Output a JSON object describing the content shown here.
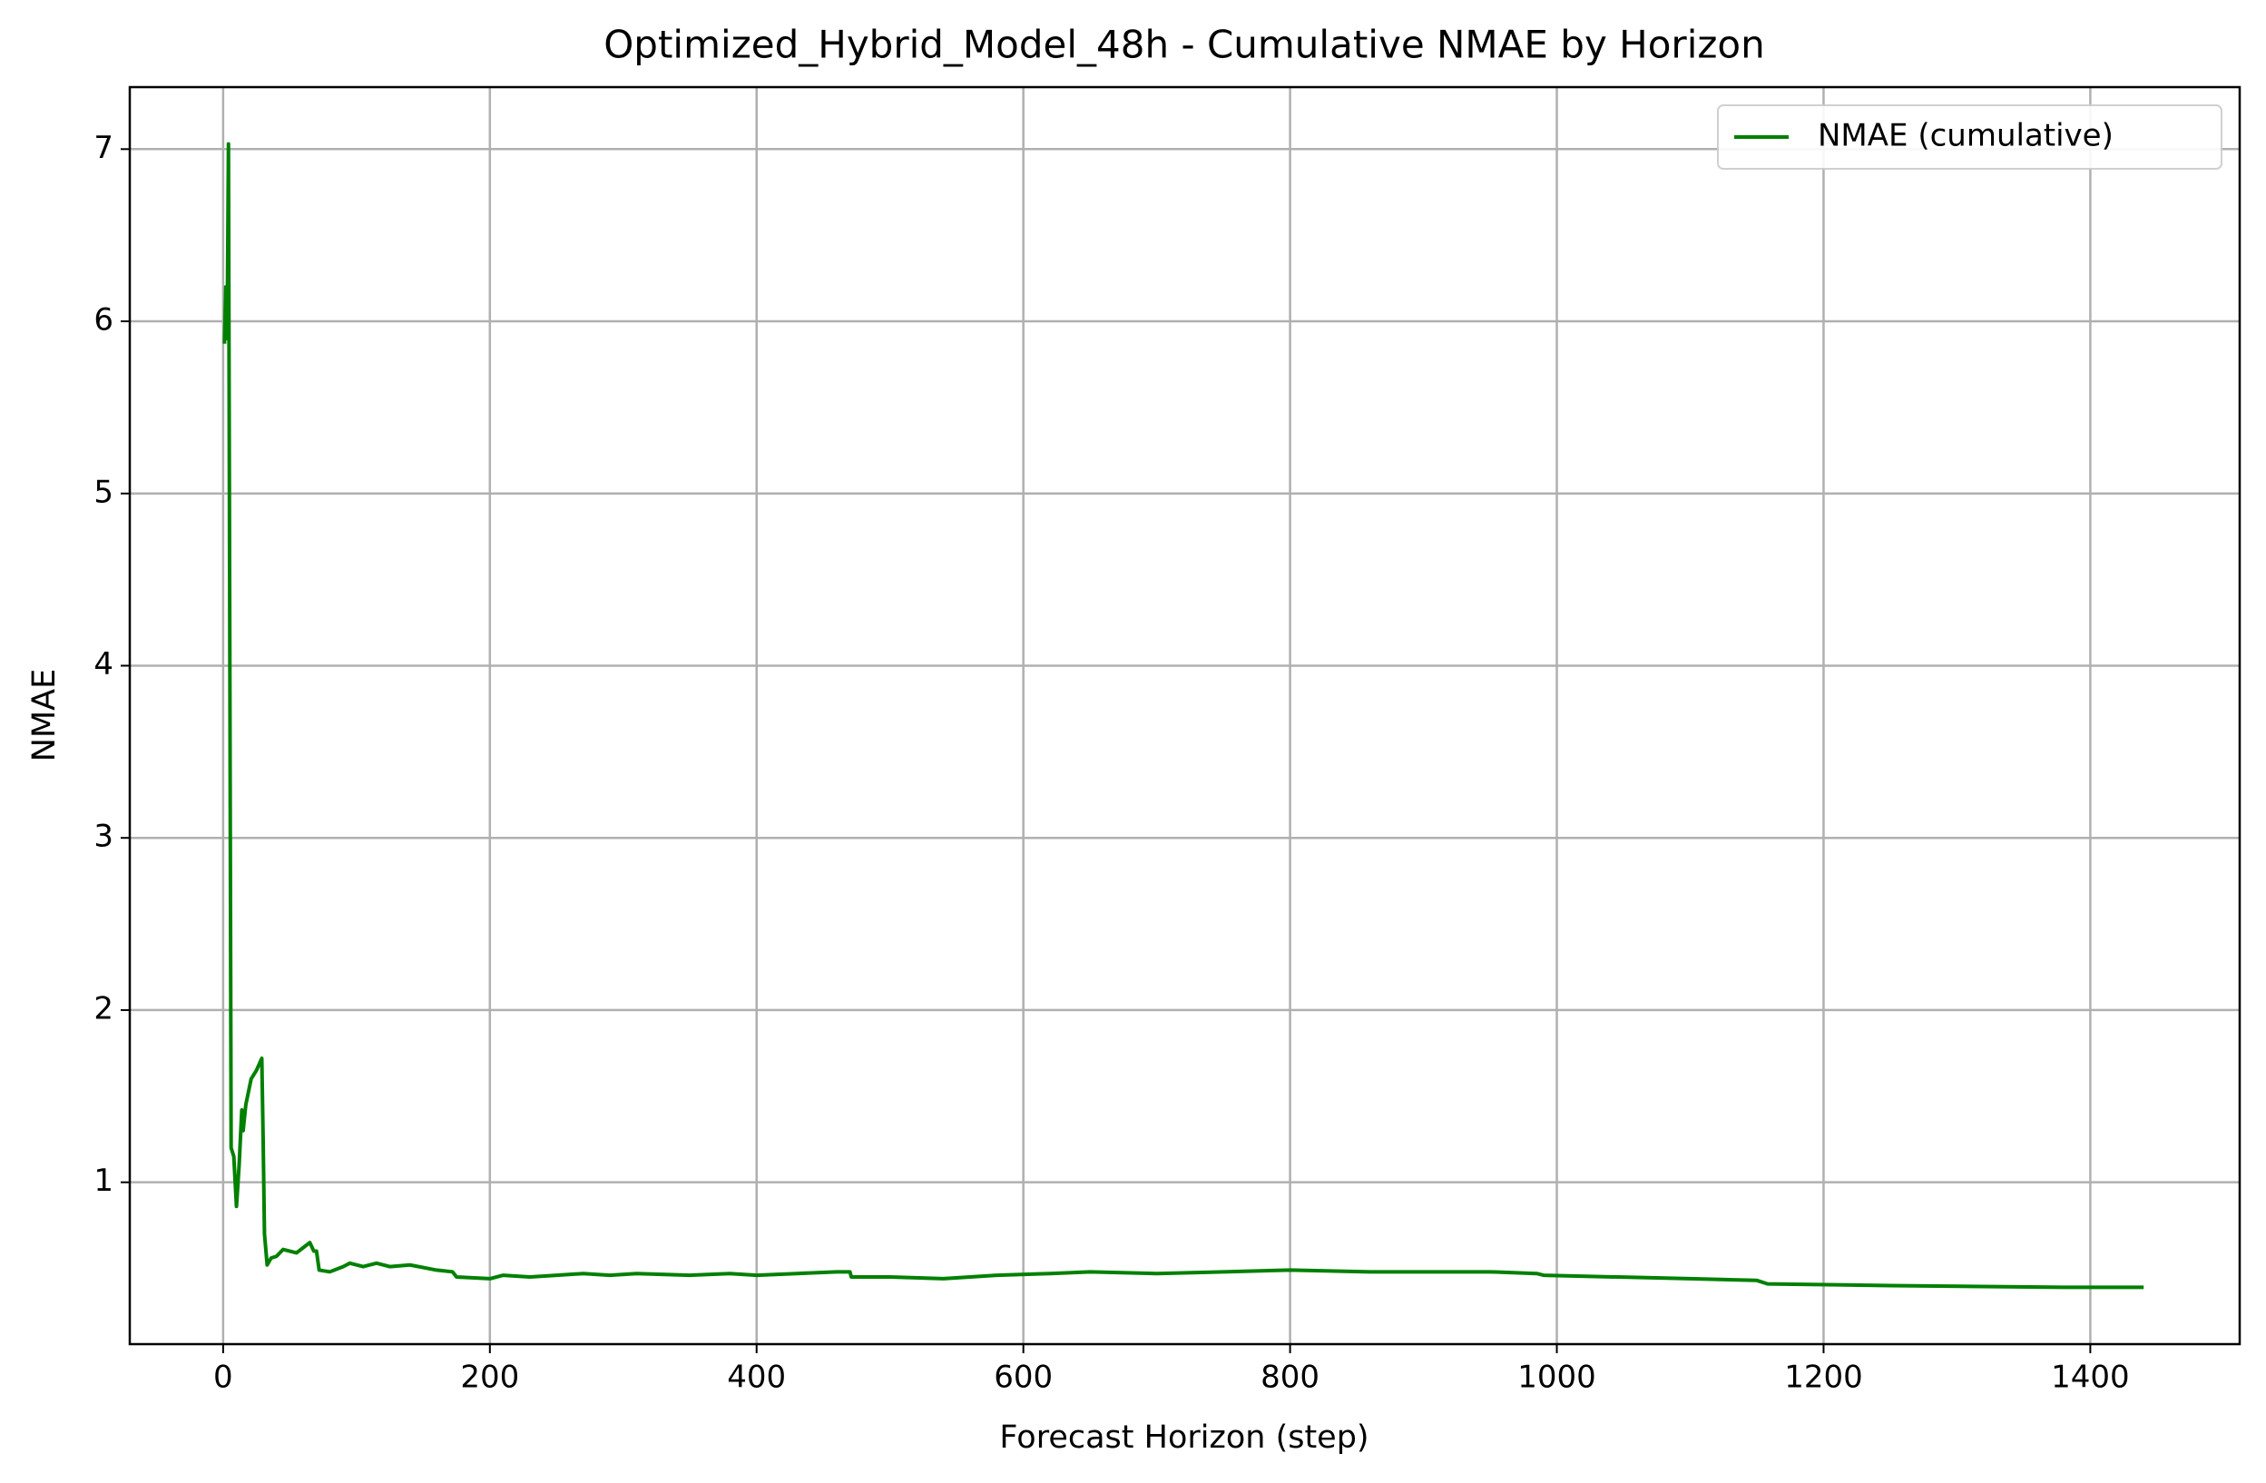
{
  "chart_data": {
    "type": "line",
    "title": "Optimized_Hybrid_Model_48h - Cumulative NMAE by Horizon",
    "xlabel": "Forecast Horizon (step)",
    "ylabel": "NMAE",
    "x": [
      1,
      2,
      3,
      4,
      6,
      8,
      10,
      12,
      14,
      15,
      17,
      21,
      25,
      29,
      30,
      31,
      33,
      36,
      40,
      45,
      55,
      60,
      65,
      68,
      70,
      72,
      80,
      90,
      95,
      105,
      115,
      125,
      140,
      160,
      172,
      175,
      200,
      210,
      230,
      250,
      270,
      290,
      310,
      350,
      380,
      400,
      430,
      460,
      470,
      471,
      500,
      540,
      580,
      620,
      650,
      700,
      750,
      800,
      860,
      950,
      985,
      990,
      1100,
      1150,
      1158,
      1250,
      1380,
      1440
    ],
    "series": [
      {
        "name": "NMAE (cumulative)",
        "color": "#008000",
        "values": [
          5.87,
          6.2,
          5.9,
          7.03,
          1.2,
          1.15,
          0.86,
          1.1,
          1.42,
          1.3,
          1.45,
          1.6,
          1.65,
          1.72,
          1.25,
          0.7,
          0.52,
          0.56,
          0.57,
          0.61,
          0.59,
          0.62,
          0.65,
          0.6,
          0.6,
          0.49,
          0.48,
          0.51,
          0.53,
          0.51,
          0.53,
          0.51,
          0.52,
          0.49,
          0.48,
          0.45,
          0.44,
          0.46,
          0.45,
          0.46,
          0.47,
          0.46,
          0.47,
          0.46,
          0.47,
          0.46,
          0.47,
          0.48,
          0.48,
          0.45,
          0.45,
          0.44,
          0.46,
          0.47,
          0.48,
          0.47,
          0.48,
          0.49,
          0.48,
          0.48,
          0.47,
          0.46,
          0.44,
          0.43,
          0.41,
          0.4,
          0.39,
          0.39
        ]
      }
    ],
    "xlim": [
      -70,
      1512
    ],
    "ylim": [
      0.06,
      7.36
    ],
    "xticks": [
      0,
      200,
      400,
      600,
      800,
      1000,
      1200,
      1400
    ],
    "yticks": [
      1,
      2,
      3,
      4,
      5,
      6,
      7
    ],
    "grid": true,
    "legend": "upper right"
  }
}
